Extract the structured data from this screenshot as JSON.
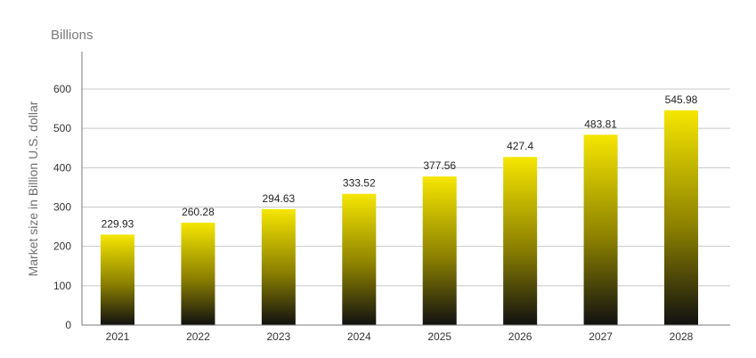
{
  "chart_data": {
    "type": "bar",
    "unit_label": "Billions",
    "ylabel": "Market size in Billion U.S. dollar",
    "xlabel": "",
    "categories": [
      "2021",
      "2022",
      "2023",
      "2024",
      "2025",
      "2026",
      "2027",
      "2028"
    ],
    "values": [
      229.93,
      260.28,
      294.63,
      333.52,
      377.56,
      427.4,
      483.81,
      545.98
    ],
    "data_labels": [
      "229.93",
      "260.28",
      "294.63",
      "333.52",
      "377.56",
      "427.4",
      "483.81",
      "545.98"
    ],
    "ylim": [
      0,
      600
    ],
    "yticks": [
      0,
      100,
      200,
      300,
      400,
      500,
      600
    ],
    "grid": true,
    "legend": "none",
    "colors": {
      "bar_top": "#f5e600",
      "bar_bottom": "#111111"
    }
  }
}
